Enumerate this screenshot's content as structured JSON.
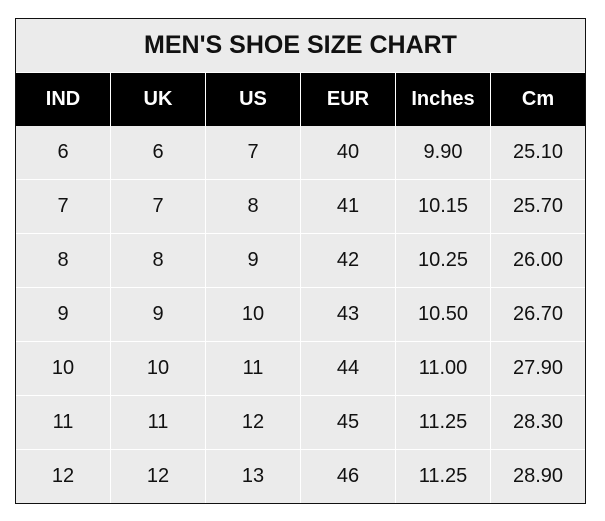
{
  "chart_data": {
    "type": "table",
    "title": "MEN'S SHOE SIZE CHART",
    "columns": [
      "IND",
      "UK",
      "US",
      "EUR",
      "Inches",
      "Cm"
    ],
    "rows": [
      [
        "6",
        "6",
        "7",
        "40",
        "9.90",
        "25.10"
      ],
      [
        "7",
        "7",
        "8",
        "41",
        "10.15",
        "25.70"
      ],
      [
        "8",
        "8",
        "9",
        "42",
        "10.25",
        "26.00"
      ],
      [
        "9",
        "9",
        "10",
        "43",
        "10.50",
        "26.70"
      ],
      [
        "10",
        "10",
        "11",
        "44",
        "11.00",
        "27.90"
      ],
      [
        "11",
        "11",
        "12",
        "45",
        "11.25",
        "28.30"
      ],
      [
        "12",
        "12",
        "13",
        "46",
        "11.25",
        "28.90"
      ]
    ],
    "colors": {
      "header_bg": "#000000",
      "header_text": "#ffffff",
      "cell_bg": "#ebebeb",
      "grid": "#ffffff"
    }
  }
}
